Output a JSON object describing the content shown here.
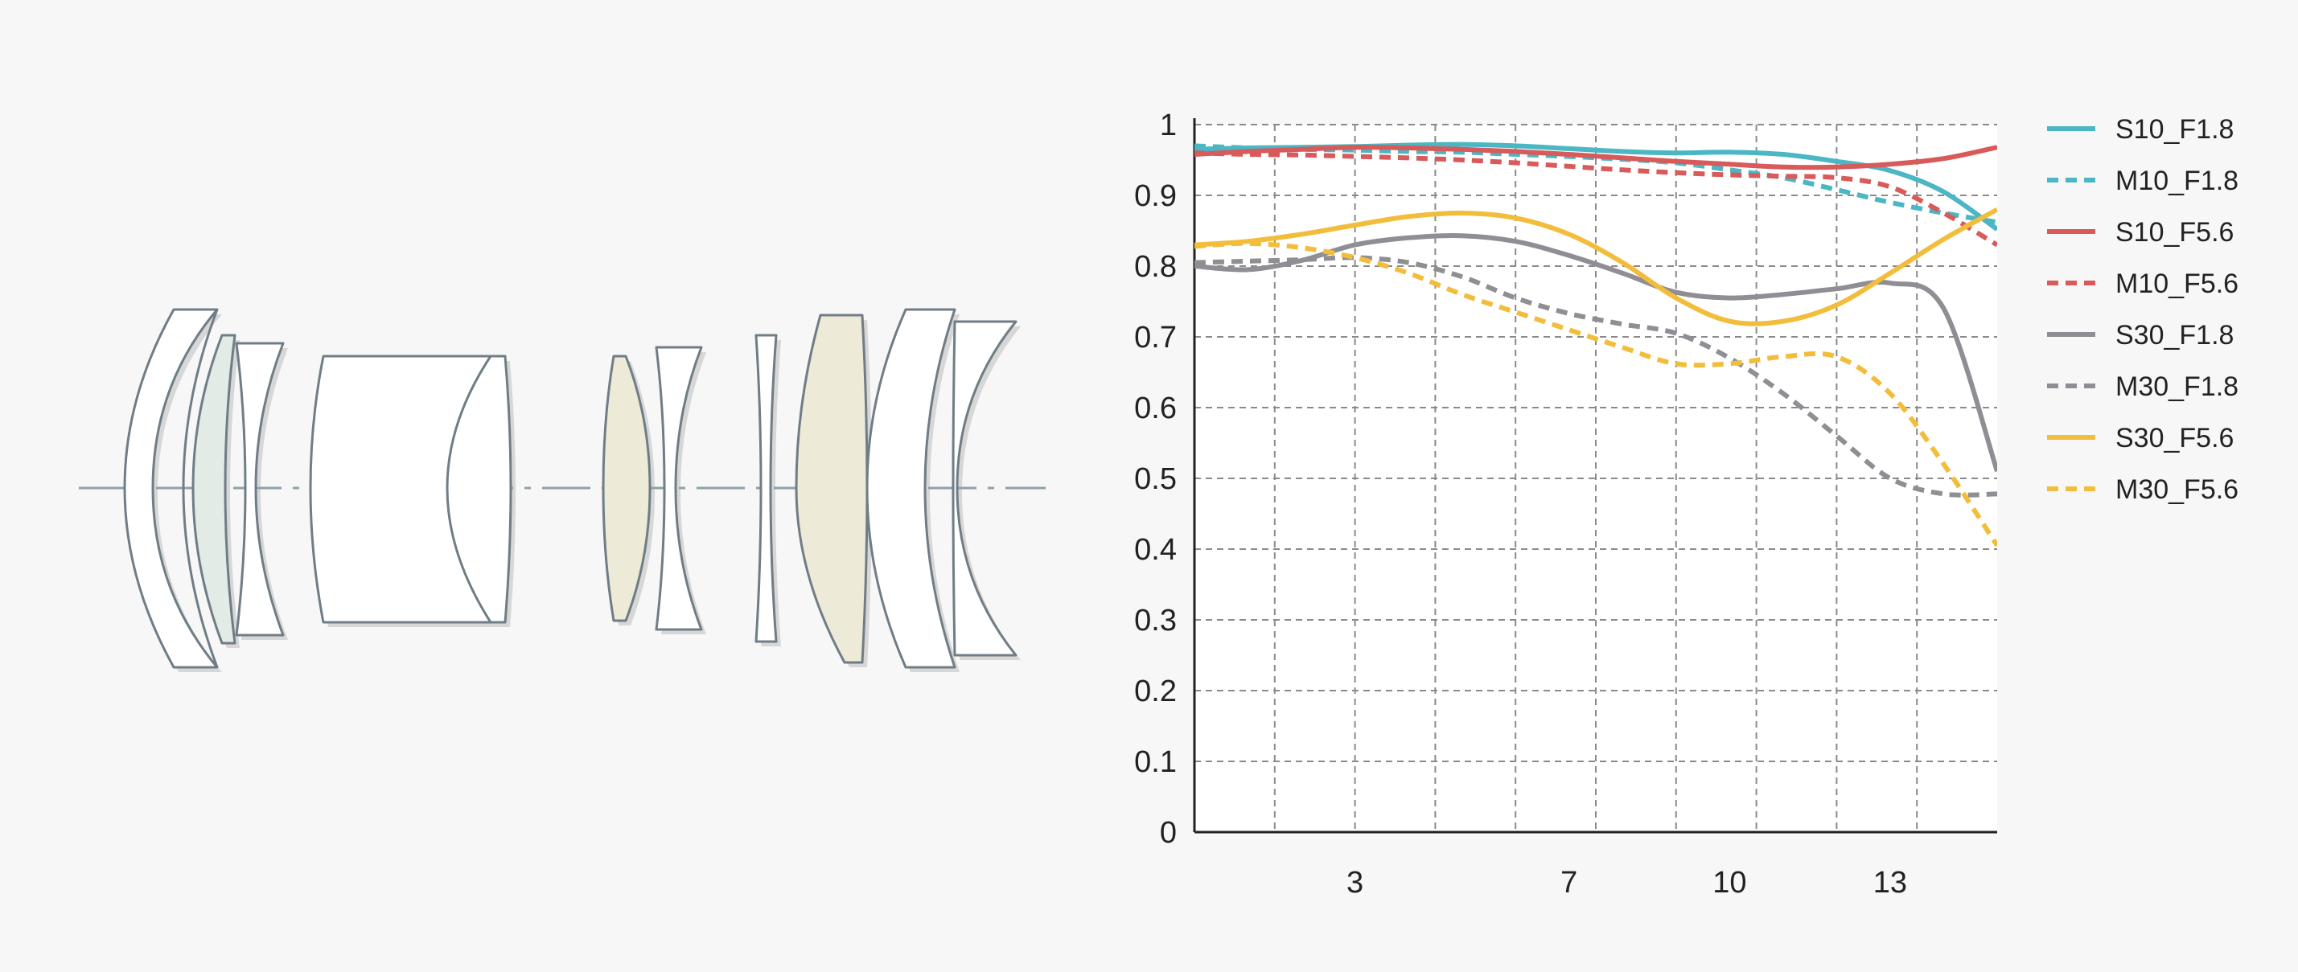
{
  "colors": {
    "background": "#f7f7f7",
    "lens_outline": "#6f7d86",
    "lens_fill": "#ffffff",
    "element_green_tint": "#e3ebe6",
    "element_yellow_tint": "#edebd8",
    "optical_axis": "#8fa0a8",
    "grid": "#8a8a8a",
    "axis": "#222222"
  },
  "chart_data": {
    "type": "line",
    "title": "",
    "xlabel": "",
    "ylabel": "",
    "xlim": [
      0,
      15
    ],
    "ylim": [
      0,
      1
    ],
    "x_ticks": [
      3,
      7,
      10,
      13
    ],
    "y_ticks": [
      0,
      0.1,
      0.2,
      0.3,
      0.4,
      0.5,
      0.6,
      0.7,
      0.8,
      0.9,
      1
    ],
    "y_tick_labels": [
      "0",
      "0.1",
      "0.2",
      "0.3",
      "0.4",
      "0.5",
      "0.6",
      "0.7",
      "0.8",
      "0.9",
      "1"
    ],
    "grid": true,
    "legend_position": "right",
    "series": [
      {
        "name": "S10_F1.8",
        "color": "#4bb6c4",
        "dash": false,
        "x": [
          0,
          1,
          2,
          3,
          4,
          5,
          6,
          7,
          8,
          9,
          10,
          11,
          12,
          13,
          14,
          15
        ],
        "y": [
          0.965,
          0.967,
          0.968,
          0.969,
          0.971,
          0.972,
          0.97,
          0.966,
          0.962,
          0.96,
          0.961,
          0.958,
          0.948,
          0.935,
          0.905,
          0.852
        ]
      },
      {
        "name": "M10_F1.8",
        "color": "#4bb6c4",
        "dash": true,
        "x": [
          0,
          1,
          2,
          3,
          4,
          5,
          6,
          7,
          8,
          9,
          10,
          11,
          12,
          13,
          14,
          15
        ],
        "y": [
          0.97,
          0.967,
          0.965,
          0.964,
          0.962,
          0.961,
          0.958,
          0.955,
          0.951,
          0.946,
          0.936,
          0.925,
          0.908,
          0.89,
          0.875,
          0.862
        ]
      },
      {
        "name": "S10_F5.6",
        "color": "#d85a5a",
        "dash": false,
        "x": [
          0,
          1,
          2,
          3,
          4,
          5,
          6,
          7,
          8,
          9,
          10,
          11,
          12,
          13,
          14,
          15
        ],
        "y": [
          0.958,
          0.962,
          0.965,
          0.968,
          0.967,
          0.965,
          0.962,
          0.958,
          0.953,
          0.948,
          0.944,
          0.94,
          0.94,
          0.944,
          0.952,
          0.968
        ]
      },
      {
        "name": "M10_F5.6",
        "color": "#d85a5a",
        "dash": true,
        "x": [
          0,
          1,
          2,
          3,
          4,
          5,
          6,
          7,
          8,
          9,
          10,
          11,
          12,
          13,
          14,
          15
        ],
        "y": [
          0.96,
          0.958,
          0.957,
          0.955,
          0.953,
          0.95,
          0.946,
          0.941,
          0.936,
          0.932,
          0.929,
          0.927,
          0.925,
          0.912,
          0.875,
          0.83
        ]
      },
      {
        "name": "S30_F1.8",
        "color": "#8e8e94",
        "dash": false,
        "x": [
          0,
          1,
          2,
          3,
          4,
          5,
          6,
          7,
          8,
          9,
          10,
          11,
          12,
          13,
          14,
          15
        ],
        "y": [
          0.8,
          0.795,
          0.808,
          0.83,
          0.84,
          0.843,
          0.835,
          0.815,
          0.79,
          0.763,
          0.755,
          0.76,
          0.768,
          0.776,
          0.74,
          0.51
        ]
      },
      {
        "name": "M30_F1.8",
        "color": "#8e8e94",
        "dash": true,
        "x": [
          0,
          1,
          2,
          3,
          4,
          5,
          6,
          7,
          8,
          9,
          10,
          11,
          12,
          13,
          14,
          15
        ],
        "y": [
          0.805,
          0.807,
          0.809,
          0.812,
          0.805,
          0.785,
          0.755,
          0.733,
          0.718,
          0.705,
          0.67,
          0.62,
          0.56,
          0.5,
          0.478,
          0.478
        ]
      },
      {
        "name": "S30_F5.6",
        "color": "#f3bd3c",
        "dash": false,
        "x": [
          0,
          1,
          2,
          3,
          4,
          5,
          6,
          7,
          8,
          9,
          10,
          11,
          12,
          13,
          14,
          15
        ],
        "y": [
          0.83,
          0.835,
          0.845,
          0.858,
          0.87,
          0.875,
          0.868,
          0.845,
          0.805,
          0.755,
          0.722,
          0.722,
          0.745,
          0.79,
          0.838,
          0.88
        ]
      },
      {
        "name": "M30_F5.6",
        "color": "#f3bd3c",
        "dash": true,
        "x": [
          0,
          1,
          2,
          3,
          4,
          5,
          6,
          7,
          8,
          9,
          10,
          11,
          12,
          13,
          14,
          15
        ],
        "y": [
          0.828,
          0.832,
          0.826,
          0.812,
          0.79,
          0.76,
          0.735,
          0.71,
          0.685,
          0.662,
          0.662,
          0.672,
          0.672,
          0.62,
          0.52,
          0.405
        ]
      }
    ]
  }
}
